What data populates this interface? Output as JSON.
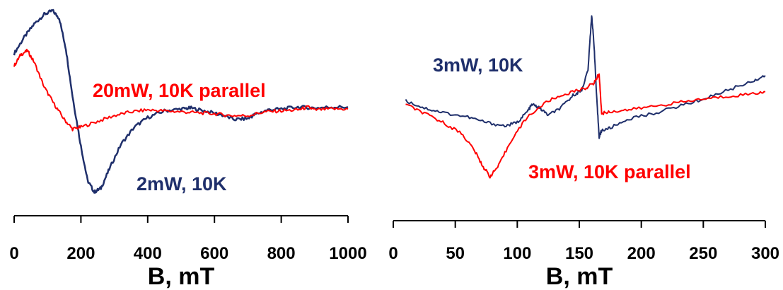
{
  "chart_data": [
    {
      "type": "line",
      "xlabel": "B, mT",
      "xlim": [
        0,
        1000
      ],
      "xticks": [
        0,
        200,
        400,
        600,
        800,
        1000
      ],
      "ylim": [
        -1,
        1
      ],
      "y_axis_shown": false,
      "series": [
        {
          "name": "2mW, 10K",
          "color": "#1f2f6b",
          "points": [
            [
              0,
              0.55
            ],
            [
              30,
              0.72
            ],
            [
              60,
              0.86
            ],
            [
              90,
              0.96
            ],
            [
              115,
              1.0
            ],
            [
              135,
              0.92
            ],
            [
              155,
              0.6
            ],
            [
              175,
              0.1
            ],
            [
              200,
              -0.42
            ],
            [
              220,
              -0.78
            ],
            [
              240,
              -0.9
            ],
            [
              260,
              -0.86
            ],
            [
              285,
              -0.66
            ],
            [
              320,
              -0.4
            ],
            [
              360,
              -0.22
            ],
            [
              400,
              -0.12
            ],
            [
              450,
              -0.05
            ],
            [
              500,
              -0.03
            ],
            [
              530,
              -0.02
            ],
            [
              570,
              -0.05
            ],
            [
              620,
              -0.09
            ],
            [
              660,
              -0.14
            ],
            [
              700,
              -0.13
            ],
            [
              720,
              -0.09
            ],
            [
              760,
              -0.04
            ],
            [
              800,
              -0.03
            ],
            [
              850,
              -0.01
            ],
            [
              900,
              -0.02
            ],
            [
              950,
              -0.01
            ],
            [
              1000,
              -0.01
            ]
          ]
        },
        {
          "name": "20mW, 10K parallel",
          "color": "#ff0000",
          "points": [
            [
              0,
              0.42
            ],
            [
              20,
              0.54
            ],
            [
              40,
              0.58
            ],
            [
              60,
              0.46
            ],
            [
              90,
              0.2
            ],
            [
              120,
              0.02
            ],
            [
              150,
              -0.14
            ],
            [
              175,
              -0.24
            ],
            [
              200,
              -0.22
            ],
            [
              250,
              -0.16
            ],
            [
              300,
              -0.1
            ],
            [
              350,
              -0.06
            ],
            [
              400,
              -0.04
            ],
            [
              450,
              -0.05
            ],
            [
              500,
              -0.06
            ],
            [
              550,
              -0.07
            ],
            [
              600,
              -0.08
            ],
            [
              650,
              -0.1
            ],
            [
              700,
              -0.1
            ],
            [
              750,
              -0.06
            ],
            [
              800,
              -0.05
            ],
            [
              850,
              -0.04
            ],
            [
              880,
              -0.01
            ],
            [
              900,
              -0.04
            ],
            [
              950,
              -0.03
            ],
            [
              1000,
              -0.03
            ]
          ]
        }
      ]
    },
    {
      "type": "line",
      "xlabel": "B, mT",
      "xlim": [
        0,
        300
      ],
      "xticks": [
        0,
        50,
        100,
        150,
        200,
        250,
        300
      ],
      "ylim": [
        -1,
        1
      ],
      "y_axis_shown": false,
      "series": [
        {
          "name": "3mW, 10K",
          "color": "#1f2f6b",
          "points": [
            [
              10,
              0.0
            ],
            [
              25,
              -0.08
            ],
            [
              40,
              -0.13
            ],
            [
              60,
              -0.18
            ],
            [
              75,
              -0.24
            ],
            [
              90,
              -0.28
            ],
            [
              100,
              -0.24
            ],
            [
              108,
              -0.12
            ],
            [
              112,
              -0.04
            ],
            [
              118,
              -0.08
            ],
            [
              125,
              -0.16
            ],
            [
              135,
              -0.08
            ],
            [
              145,
              0.06
            ],
            [
              152,
              0.12
            ],
            [
              157,
              0.34
            ],
            [
              160,
              0.95
            ],
            [
              162,
              0.6
            ],
            [
              164,
              0.04
            ],
            [
              166,
              -0.4
            ],
            [
              168,
              -0.33
            ],
            [
              175,
              -0.3
            ],
            [
              190,
              -0.2
            ],
            [
              210,
              -0.14
            ],
            [
              230,
              -0.06
            ],
            [
              250,
              0.02
            ],
            [
              270,
              0.12
            ],
            [
              290,
              0.22
            ],
            [
              300,
              0.28
            ]
          ]
        },
        {
          "name": "3mW, 10K parallel",
          "color": "#ff0000",
          "points": [
            [
              10,
              -0.04
            ],
            [
              25,
              -0.14
            ],
            [
              40,
              -0.24
            ],
            [
              55,
              -0.36
            ],
            [
              65,
              -0.54
            ],
            [
              72,
              -0.72
            ],
            [
              78,
              -0.84
            ],
            [
              85,
              -0.72
            ],
            [
              95,
              -0.44
            ],
            [
              108,
              -0.18
            ],
            [
              125,
              0.0
            ],
            [
              140,
              0.08
            ],
            [
              155,
              0.14
            ],
            [
              162,
              0.2
            ],
            [
              166,
              0.3
            ],
            [
              168,
              -0.14
            ],
            [
              175,
              -0.12
            ],
            [
              190,
              -0.1
            ],
            [
              210,
              -0.06
            ],
            [
              230,
              -0.02
            ],
            [
              250,
              0.02
            ],
            [
              270,
              0.05
            ],
            [
              290,
              0.08
            ],
            [
              300,
              0.1
            ]
          ]
        }
      ]
    }
  ]
}
